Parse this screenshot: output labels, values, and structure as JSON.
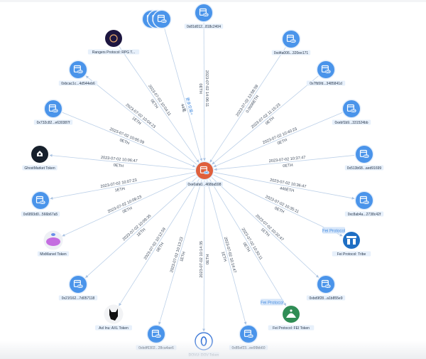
{
  "colors": {
    "address_node": "#4a94ea",
    "center_node": "#df5f3c",
    "edge": "#bcd0e8",
    "label_bg": "#e7f0fb",
    "more_link": "#4a8fe0"
  },
  "center": {
    "label": "0xe0afa0...468ba598",
    "icon": "wallet-link-icon"
  },
  "nodes": [
    {
      "id": "more",
      "label": "",
      "icon": "wallet-link-icon",
      "kind": "cluster",
      "direction": "in",
      "date": "更多交易+",
      "amount": "44笔"
    },
    {
      "id": "n1",
      "label": "0x81d012...818c2404",
      "icon": "wallet-link-icon",
      "kind": "address",
      "direction": "in",
      "date": "2023-07-02 14:06:11",
      "amount": "0ETH"
    },
    {
      "id": "n2",
      "label": "0xd4a006...320ee171",
      "icon": "wallet-link-icon",
      "kind": "address",
      "direction": "in",
      "date": "2023-07-02 13:58:59",
      "amount": "0.0006ETH"
    },
    {
      "id": "n3",
      "label": "0x7fb5fd...3485841d",
      "icon": "wallet-link-icon",
      "kind": "address",
      "direction": "in",
      "date": "2023-07-02 11:15:23",
      "amount": "0ETH"
    },
    {
      "id": "n4",
      "label": "0xebf1b9...331524bb",
      "icon": "wallet-link-icon",
      "kind": "address",
      "direction": "in",
      "date": "2023-07-02 10:40:23",
      "amount": "0ETH"
    },
    {
      "id": "n5",
      "label": "0x513b68...aed91699",
      "icon": "wallet-link-icon",
      "kind": "address",
      "direction": "in",
      "date": "2023-07-02 10:37:47",
      "amount": "0ETH"
    },
    {
      "id": "n6",
      "label": "0xc8ab4a...2738c42f",
      "icon": "wallet-link-icon",
      "kind": "address",
      "direction": "out",
      "date": "2023-07-02 10:36:47",
      "amount": "440ETH"
    },
    {
      "id": "n7",
      "label": "Fei Protocol: Tribe",
      "icon": "tribe-token-icon",
      "kind": "tribe",
      "direction": "out",
      "date": "2023-07-02 10:35:11",
      "amount": "0ETH",
      "tag": "Fei Protocol"
    },
    {
      "id": "n8",
      "label": "0xbd9f28...a1b855e9",
      "icon": "wallet-link-icon",
      "kind": "address",
      "direction": "out",
      "date": "2023-07-02 10:32:47",
      "amount": "1ETH"
    },
    {
      "id": "n9",
      "label": "Fei Protocol: FEI Token",
      "icon": "fei-token-icon",
      "kind": "fei",
      "direction": "out",
      "date": "2023-07-02 10:30:11",
      "amount": "0ETH",
      "tag": "Fei Protocol"
    },
    {
      "id": "n10",
      "label": "0x85ef23...ee99bb60",
      "icon": "wallet-link-icon",
      "kind": "address",
      "direction": "out",
      "date": "2023-07-02 10:14:47",
      "amount": "1ETH"
    },
    {
      "id": "n11",
      "label": "DOVU: DOV Token",
      "icon": "dovu-token-icon",
      "kind": "dovu",
      "direction": "out",
      "date": "2023-07-02 10:14:35",
      "amount": "0ETH"
    },
    {
      "id": "n12",
      "label": "0xbdf6302...28ca4ae6",
      "icon": "wallet-link-icon",
      "kind": "address",
      "direction": "out",
      "date": "2023-07-02 10:13:23",
      "amount": "1ETH"
    },
    {
      "id": "n13",
      "label": "Axl Inu: AXL Token",
      "icon": "axl-token-icon",
      "kind": "axl",
      "direction": "out",
      "date": "2023-07-02 10:12:59",
      "amount": "0ETH"
    },
    {
      "id": "n14",
      "label": "0x21f162...7d057118",
      "icon": "wallet-link-icon",
      "kind": "address",
      "direction": "out",
      "date": "2023-07-02 10:09:35",
      "amount": "1ETH"
    },
    {
      "id": "n15",
      "label": "MixMarvel Token",
      "icon": "mixmarvel-token-icon",
      "kind": "mix",
      "direction": "out",
      "date": "2023-07-02 10:09:23",
      "amount": "0ETH"
    },
    {
      "id": "n16",
      "label": "0x6893d0...566b67a5",
      "icon": "wallet-link-icon",
      "kind": "address",
      "direction": "out",
      "date": "2023-07-02 10:07:23",
      "amount": "1ETH"
    },
    {
      "id": "n17",
      "label": "GhostMarket Token",
      "icon": "ghostmarket-token-icon",
      "kind": "ghost",
      "direction": "out",
      "date": "2023-07-02 10:06:47",
      "amount": "0ETH"
    },
    {
      "id": "n18",
      "label": "0x732c82...e630387f",
      "icon": "wallet-link-icon",
      "kind": "address",
      "direction": "in",
      "date": "2023-07-02 10:05:59",
      "amount": "0ETH"
    },
    {
      "id": "n19",
      "label": "0xbcac1c...4d544eb6",
      "icon": "wallet-link-icon",
      "kind": "address",
      "direction": "out",
      "date": "2023-07-02 10:04:23",
      "amount": "1ETH"
    },
    {
      "id": "n20",
      "label": "Rangers Protocol: RPG T...",
      "icon": "rangers-token-icon",
      "kind": "rangers",
      "direction": "in",
      "date": "2023-07-02 10:04:11",
      "amount": "0ETH"
    }
  ]
}
